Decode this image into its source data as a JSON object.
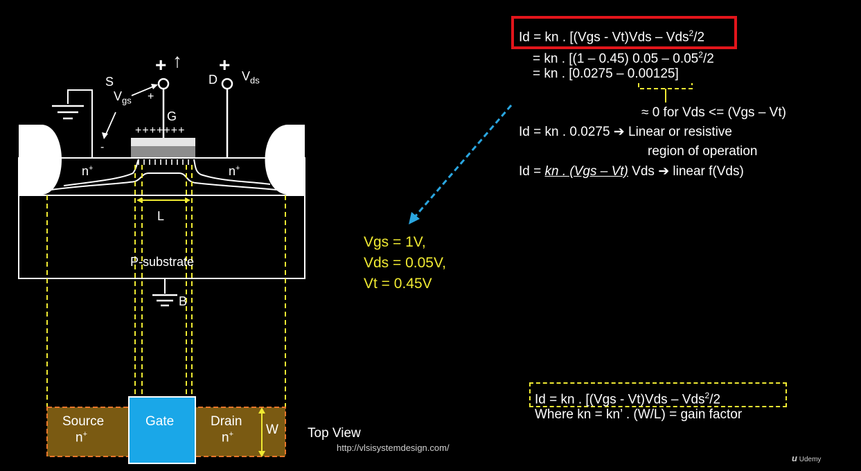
{
  "diagram": {
    "labels": {
      "S": "S",
      "Vgs_main": "V",
      "Vgs_sub": "gs",
      "plus_gate": "+",
      "minus_source": "-",
      "G": "G",
      "gate_charges": "+++++++",
      "D": "D",
      "Vds_main": "V",
      "Vds_sub": "ds",
      "big_plus_gate": "+",
      "big_plus_drain": "+",
      "arrow_up": "↑",
      "nplus_left_main": "n",
      "nplus_left_sup": "+",
      "nplus_right_main": "n",
      "nplus_right_sup": "+",
      "L": "L",
      "substrate": "P-substrate",
      "B": "B"
    },
    "top_view": {
      "source_label": "Source",
      "source_n_main": "n",
      "source_n_sup": "+",
      "gate_label": "Gate",
      "drain_label": "Drain",
      "drain_n_main": "n",
      "drain_n_sup": "+",
      "W": "W",
      "caption": "Top View"
    },
    "url": "http://vlsisystemdesign.com/"
  },
  "equations": {
    "line1": {
      "a": "Id = kn . [(Vgs - Vt)Vds – Vds",
      "sup": "2",
      "b": "/2"
    },
    "line2": {
      "a": "= kn . [(1 – 0.45) 0.05 – 0.05",
      "sup": "2",
      "b": "/2"
    },
    "line3": "= kn . [0.0275 – 0.00125]",
    "note": "≈ 0 for Vds <= (Vgs – Vt)",
    "line4_a": "Id = kn . 0.0275",
    "line4_arrow": "➔",
    "line4_b": "Linear or resistive",
    "line5": "region of operation",
    "line6_a": "Id = ",
    "line6_u": "kn . (Vgs – Vt)",
    "line6_b": " Vds",
    "line6_arrow": "➔",
    "line6_c": "linear f(Vds)"
  },
  "given_values": {
    "vgs": "Vgs = 1V,",
    "vds": "Vds = 0.05V,",
    "vt": "Vt = 0.45V"
  },
  "summary": {
    "line1": {
      "a": "Id = kn . [(Vgs - Vt)Vds – Vds",
      "sup": "2",
      "b": "/2"
    },
    "line2": "Where kn = kn’ . (W/L) = gain factor"
  },
  "branding": {
    "name": "Udemy"
  },
  "colors": {
    "highlight_red": "#e2151b",
    "dashed_yellow": "#f0ea32",
    "arrow_blue": "#2aa6e0",
    "gate_blue": "#1aa7e8",
    "diffusion_brown": "#7a5a12",
    "diffusion_border_orange": "#e8762a"
  }
}
